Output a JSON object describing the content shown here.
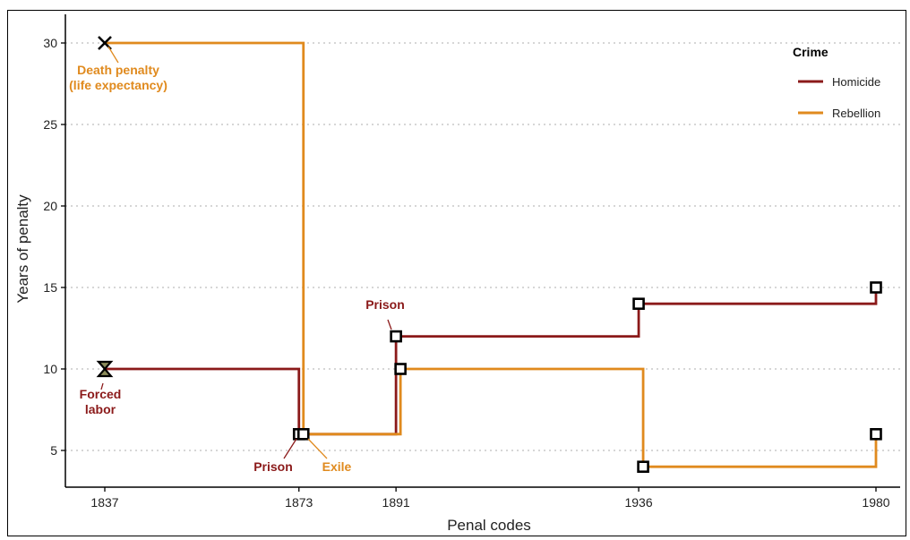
{
  "chart_data": {
    "type": "line",
    "subtype": "step",
    "title": "",
    "xlabel": "Penal codes",
    "ylabel": "Years of penalty",
    "x": [
      1837,
      1873,
      1891,
      1936,
      1980
    ],
    "x_tick_labels": [
      "1837",
      "1873",
      "1891",
      "1936",
      "1980"
    ],
    "y_ticks": [
      5,
      10,
      15,
      20,
      25,
      30
    ],
    "y_tick_labels": [
      "5",
      "10",
      "15",
      "20",
      "25",
      "30"
    ],
    "xlim": [
      1833,
      1983
    ],
    "ylim": [
      3,
      31.5
    ],
    "grid": "horizontal dotted",
    "legend": {
      "title": "Crime",
      "position": "top-right"
    },
    "series": [
      {
        "name": "Homicide",
        "color": "#8b1a1a",
        "values": [
          10,
          6,
          12,
          14,
          15
        ],
        "markers": [
          "hourglass",
          "square",
          "square",
          "square",
          "square"
        ]
      },
      {
        "name": "Rebellion",
        "color": "#e08a1e",
        "values": [
          30,
          6,
          10,
          4,
          6
        ],
        "markers": [
          "cross",
          "square",
          "square",
          "square",
          "square"
        ]
      }
    ],
    "annotations": [
      {
        "series": "Rebellion",
        "x": 1837,
        "y": 30,
        "lines": [
          "Death penalty",
          "(life expectancy)"
        ],
        "color": "#e08a1e"
      },
      {
        "series": "Homicide",
        "x": 1837,
        "y": 10,
        "lines": [
          "Forced",
          "labor"
        ],
        "color": "#8b1a1a"
      },
      {
        "series": "Homicide",
        "x": 1873,
        "y": 6,
        "lines": [
          "Prison"
        ],
        "color": "#8b1a1a"
      },
      {
        "series": "Rebellion",
        "x": 1873,
        "y": 6,
        "lines": [
          "Exile"
        ],
        "color": "#e08a1e"
      },
      {
        "series": "Homicide",
        "x": 1891,
        "y": 12,
        "lines": [
          "Prison"
        ],
        "color": "#8b1a1a"
      }
    ]
  }
}
